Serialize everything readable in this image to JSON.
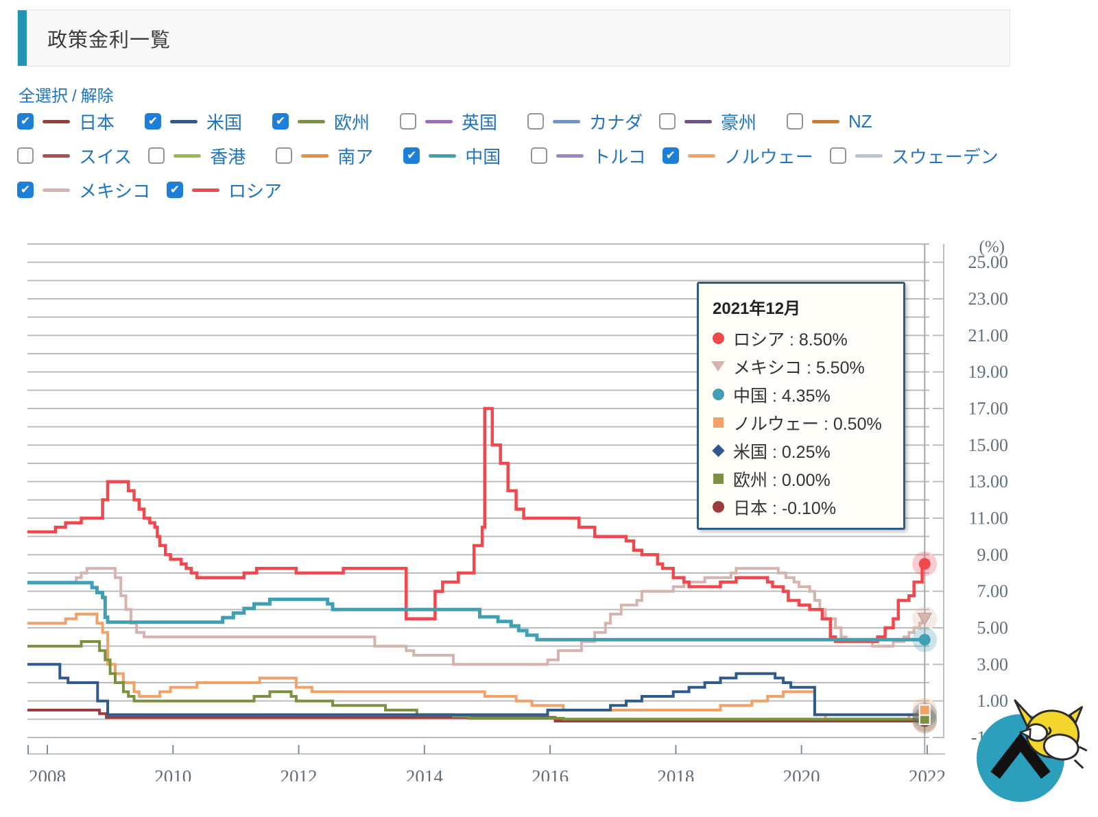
{
  "header": {
    "title": "政策金利一覧"
  },
  "legend": {
    "select_all": "全選択",
    "separator": "/",
    "deselect": "解除",
    "rows": [
      [
        {
          "label": "日本",
          "color": "#9e3c3c",
          "checked": true
        },
        {
          "label": "米国",
          "color": "#2f5a8e",
          "checked": true
        },
        {
          "label": "欧州",
          "color": "#7c9140",
          "checked": true
        },
        {
          "label": "英国",
          "color": "#9a6bc0",
          "checked": false
        },
        {
          "label": "カナダ",
          "color": "#6b97c9",
          "checked": false
        },
        {
          "label": "豪州",
          "color": "#6f5192",
          "checked": false
        },
        {
          "label": "NZ",
          "color": "#cc7d2c",
          "checked": false
        }
      ],
      [
        {
          "label": "スイス",
          "color": "#b04c4c",
          "checked": false
        },
        {
          "label": "香港",
          "color": "#94bb55",
          "checked": false
        },
        {
          "label": "南ア",
          "color": "#e58f3f",
          "checked": false
        },
        {
          "label": "中国",
          "color": "#3f9fb3",
          "checked": true
        },
        {
          "label": "トルコ",
          "color": "#9d85bd",
          "checked": false
        },
        {
          "label": "ノルウェー",
          "color": "#f2a266",
          "checked": true
        },
        {
          "label": "スウェーデン",
          "color": "#b9c5d6",
          "checked": false
        }
      ],
      [
        {
          "label": "メキシコ",
          "color": "#d7b3ae",
          "checked": true
        },
        {
          "label": "ロシア",
          "color": "#f0484d",
          "checked": true
        }
      ]
    ]
  },
  "chart_data": {
    "type": "line",
    "title": "政策金利一覧",
    "ylabel": "(%)",
    "xlabel": "",
    "x_range": [
      2007.68,
      2022.03
    ],
    "ylim": [
      -1,
      26
    ],
    "grid": true,
    "y_tick_values": [
      25,
      23,
      21,
      19,
      17,
      15,
      13,
      11,
      9,
      7,
      5,
      3,
      1,
      -1
    ],
    "x_tick_years": [
      2008,
      2010,
      2012,
      2014,
      2016,
      2018,
      2020,
      2022
    ],
    "crosshair_x_year": 2021.96,
    "series": [
      {
        "name": "メキシコ",
        "color": "#d7b3ae",
        "width": 4,
        "marker": "triangle-down",
        "marker_z": 4,
        "end_value": 5.5,
        "points": [
          [
            2007.68,
            7.5
          ],
          [
            2008.46,
            7.75
          ],
          [
            2008.54,
            8.0
          ],
          [
            2008.63,
            8.25
          ],
          [
            2009.08,
            7.75
          ],
          [
            2009.17,
            6.75
          ],
          [
            2009.25,
            6.0
          ],
          [
            2009.33,
            5.25
          ],
          [
            2009.42,
            4.75
          ],
          [
            2009.54,
            4.5
          ],
          [
            2013.21,
            4.0
          ],
          [
            2013.71,
            3.75
          ],
          [
            2013.83,
            3.5
          ],
          [
            2014.46,
            3.0
          ],
          [
            2015.96,
            3.25
          ],
          [
            2016.13,
            3.75
          ],
          [
            2016.5,
            4.25
          ],
          [
            2016.71,
            4.75
          ],
          [
            2016.88,
            5.25
          ],
          [
            2016.96,
            5.75
          ],
          [
            2017.13,
            6.25
          ],
          [
            2017.38,
            6.5
          ],
          [
            2017.46,
            7.0
          ],
          [
            2017.96,
            7.25
          ],
          [
            2018.13,
            7.5
          ],
          [
            2018.46,
            7.75
          ],
          [
            2018.88,
            8.0
          ],
          [
            2018.96,
            8.25
          ],
          [
            2019.63,
            8.0
          ],
          [
            2019.75,
            7.75
          ],
          [
            2019.88,
            7.5
          ],
          [
            2019.96,
            7.25
          ],
          [
            2020.13,
            7.0
          ],
          [
            2020.21,
            6.5
          ],
          [
            2020.29,
            6.0
          ],
          [
            2020.38,
            5.5
          ],
          [
            2020.54,
            5.0
          ],
          [
            2020.63,
            4.5
          ],
          [
            2020.71,
            4.25
          ],
          [
            2021.13,
            4.0
          ],
          [
            2021.46,
            4.25
          ],
          [
            2021.63,
            4.5
          ],
          [
            2021.71,
            4.75
          ],
          [
            2021.79,
            5.0
          ],
          [
            2021.88,
            5.25
          ],
          [
            2021.92,
            5.5
          ],
          [
            2021.96,
            5.5
          ]
        ]
      },
      {
        "name": "ノルウェー",
        "color": "#f2a266",
        "width": 4,
        "marker": "square",
        "marker_z": 7,
        "end_value": 0.5,
        "points": [
          [
            2007.68,
            5.25
          ],
          [
            2008.29,
            5.5
          ],
          [
            2008.46,
            5.75
          ],
          [
            2008.79,
            5.25
          ],
          [
            2008.88,
            4.75
          ],
          [
            2008.96,
            3.0
          ],
          [
            2009.08,
            2.5
          ],
          [
            2009.21,
            2.0
          ],
          [
            2009.38,
            1.5
          ],
          [
            2009.46,
            1.25
          ],
          [
            2009.79,
            1.5
          ],
          [
            2009.96,
            1.75
          ],
          [
            2010.38,
            2.0
          ],
          [
            2011.38,
            2.25
          ],
          [
            2011.96,
            1.75
          ],
          [
            2012.21,
            1.5
          ],
          [
            2014.96,
            1.25
          ],
          [
            2015.46,
            1.0
          ],
          [
            2015.71,
            0.75
          ],
          [
            2016.21,
            0.5
          ],
          [
            2018.71,
            0.75
          ],
          [
            2019.21,
            1.0
          ],
          [
            2019.46,
            1.25
          ],
          [
            2019.71,
            1.5
          ],
          [
            2020.21,
            0.25
          ],
          [
            2020.38,
            0.0
          ],
          [
            2021.71,
            0.25
          ],
          [
            2021.92,
            0.5
          ],
          [
            2021.96,
            0.5
          ]
        ]
      },
      {
        "name": "ロシア",
        "color": "#f0484d",
        "width": 4.5,
        "marker": "circle",
        "marker_z": 5,
        "end_value": 8.5,
        "points": [
          [
            2007.68,
            10.25
          ],
          [
            2008.13,
            10.5
          ],
          [
            2008.29,
            10.75
          ],
          [
            2008.54,
            11.0
          ],
          [
            2008.88,
            12.0
          ],
          [
            2008.96,
            13.0
          ],
          [
            2009.29,
            12.5
          ],
          [
            2009.38,
            12.0
          ],
          [
            2009.46,
            11.5
          ],
          [
            2009.54,
            11.0
          ],
          [
            2009.63,
            10.75
          ],
          [
            2009.71,
            10.5
          ],
          [
            2009.75,
            10.0
          ],
          [
            2009.79,
            9.5
          ],
          [
            2009.88,
            9.0
          ],
          [
            2009.96,
            8.75
          ],
          [
            2010.13,
            8.5
          ],
          [
            2010.21,
            8.25
          ],
          [
            2010.29,
            8.0
          ],
          [
            2010.38,
            7.75
          ],
          [
            2011.13,
            8.0
          ],
          [
            2011.33,
            8.25
          ],
          [
            2011.96,
            8.0
          ],
          [
            2012.71,
            8.25
          ],
          [
            2013.71,
            5.5
          ],
          [
            2014.17,
            7.0
          ],
          [
            2014.29,
            7.5
          ],
          [
            2014.54,
            8.0
          ],
          [
            2014.79,
            9.5
          ],
          [
            2014.92,
            10.5
          ],
          [
            2014.96,
            17.0
          ],
          [
            2015.08,
            15.0
          ],
          [
            2015.21,
            14.0
          ],
          [
            2015.33,
            12.5
          ],
          [
            2015.46,
            11.5
          ],
          [
            2015.58,
            11.0
          ],
          [
            2016.46,
            10.5
          ],
          [
            2016.71,
            10.0
          ],
          [
            2017.21,
            9.75
          ],
          [
            2017.33,
            9.25
          ],
          [
            2017.46,
            9.0
          ],
          [
            2017.71,
            8.5
          ],
          [
            2017.79,
            8.25
          ],
          [
            2017.96,
            7.75
          ],
          [
            2018.13,
            7.5
          ],
          [
            2018.21,
            7.25
          ],
          [
            2018.71,
            7.5
          ],
          [
            2018.96,
            7.75
          ],
          [
            2019.46,
            7.5
          ],
          [
            2019.54,
            7.25
          ],
          [
            2019.71,
            7.0
          ],
          [
            2019.79,
            6.5
          ],
          [
            2019.96,
            6.25
          ],
          [
            2020.13,
            6.0
          ],
          [
            2020.33,
            5.5
          ],
          [
            2020.46,
            4.5
          ],
          [
            2020.54,
            4.25
          ],
          [
            2021.21,
            4.5
          ],
          [
            2021.33,
            5.0
          ],
          [
            2021.46,
            5.5
          ],
          [
            2021.54,
            6.5
          ],
          [
            2021.71,
            6.75
          ],
          [
            2021.79,
            7.5
          ],
          [
            2021.92,
            8.5
          ],
          [
            2021.96,
            8.5
          ]
        ]
      },
      {
        "name": "日本",
        "color": "#9e3c3c",
        "width": 4,
        "marker": "circle",
        "marker_z": 2,
        "end_value": -0.1,
        "points": [
          [
            2007.68,
            0.5
          ],
          [
            2008.83,
            0.3
          ],
          [
            2008.94,
            0.1
          ],
          [
            2016.08,
            -0.1
          ],
          [
            2021.96,
            -0.1
          ]
        ]
      },
      {
        "name": "欧州",
        "color": "#7c9140",
        "width": 4,
        "marker": "square",
        "marker_z": 6,
        "end_value": 0.0,
        "points": [
          [
            2007.68,
            4.0
          ],
          [
            2008.54,
            4.25
          ],
          [
            2008.83,
            3.75
          ],
          [
            2008.92,
            3.25
          ],
          [
            2009.0,
            2.5
          ],
          [
            2009.08,
            2.0
          ],
          [
            2009.21,
            1.5
          ],
          [
            2009.29,
            1.25
          ],
          [
            2009.38,
            1.0
          ],
          [
            2011.29,
            1.25
          ],
          [
            2011.54,
            1.5
          ],
          [
            2011.88,
            1.25
          ],
          [
            2011.96,
            1.0
          ],
          [
            2012.54,
            0.75
          ],
          [
            2013.38,
            0.5
          ],
          [
            2013.88,
            0.25
          ],
          [
            2014.46,
            0.15
          ],
          [
            2014.71,
            0.05
          ],
          [
            2016.21,
            0.0
          ],
          [
            2021.96,
            0.0
          ]
        ]
      },
      {
        "name": "米国",
        "color": "#2f5a8e",
        "width": 4,
        "marker": "diamond",
        "marker_z": 1,
        "end_value": 0.25,
        "points": [
          [
            2007.68,
            3.0
          ],
          [
            2008.2,
            2.25
          ],
          [
            2008.33,
            2.0
          ],
          [
            2008.8,
            1.0
          ],
          [
            2008.96,
            0.25
          ],
          [
            2015.96,
            0.5
          ],
          [
            2016.96,
            0.75
          ],
          [
            2017.21,
            1.0
          ],
          [
            2017.46,
            1.25
          ],
          [
            2017.96,
            1.5
          ],
          [
            2018.21,
            1.75
          ],
          [
            2018.46,
            2.0
          ],
          [
            2018.71,
            2.25
          ],
          [
            2018.96,
            2.5
          ],
          [
            2019.58,
            2.25
          ],
          [
            2019.71,
            2.0
          ],
          [
            2019.83,
            1.75
          ],
          [
            2020.21,
            0.25
          ],
          [
            2021.96,
            0.25
          ]
        ]
      },
      {
        "name": "中国",
        "color": "#3f9fb3",
        "width": 5,
        "marker": "circle",
        "marker_z": 3,
        "end_value": 4.35,
        "points": [
          [
            2007.68,
            7.47
          ],
          [
            2008.71,
            7.2
          ],
          [
            2008.79,
            6.93
          ],
          [
            2008.88,
            6.66
          ],
          [
            2008.92,
            5.58
          ],
          [
            2008.96,
            5.31
          ],
          [
            2010.79,
            5.56
          ],
          [
            2010.96,
            5.81
          ],
          [
            2011.13,
            6.06
          ],
          [
            2011.29,
            6.31
          ],
          [
            2011.54,
            6.56
          ],
          [
            2012.46,
            6.31
          ],
          [
            2012.54,
            6.0
          ],
          [
            2014.88,
            5.6
          ],
          [
            2015.17,
            5.35
          ],
          [
            2015.38,
            5.1
          ],
          [
            2015.5,
            4.85
          ],
          [
            2015.63,
            4.6
          ],
          [
            2015.79,
            4.35
          ],
          [
            2021.96,
            4.35
          ]
        ]
      }
    ]
  },
  "tooltip": {
    "date": "2021年12月",
    "separator": " : ",
    "items": [
      {
        "name": "ロシア",
        "value": "8.50%",
        "marker": "circle",
        "color": "#f0484d"
      },
      {
        "name": "メキシコ",
        "value": "5.50%",
        "marker": "triangle-down",
        "color": "#d7b3ae"
      },
      {
        "name": "中国",
        "value": "4.35%",
        "marker": "circle",
        "color": "#3f9fb3"
      },
      {
        "name": "ノルウェー",
        "value": "0.50%",
        "marker": "square",
        "color": "#f2a266"
      },
      {
        "name": "米国",
        "value": "0.25%",
        "marker": "diamond",
        "color": "#2f5a8e"
      },
      {
        "name": "欧州",
        "value": "0.00%",
        "marker": "square",
        "color": "#7c9140"
      },
      {
        "name": "日本",
        "value": "-0.10%",
        "marker": "circle",
        "color": "#9e3c3c"
      }
    ]
  },
  "colors": {
    "accent_teal": "#2095b3",
    "checkbox_checked": "#1e7fd7",
    "link_blue": "#1e73c2",
    "tooltip_border": "#2d5a87",
    "scroll_button": "#2b9fbc",
    "mascot_yellow": "#f4d62a"
  }
}
